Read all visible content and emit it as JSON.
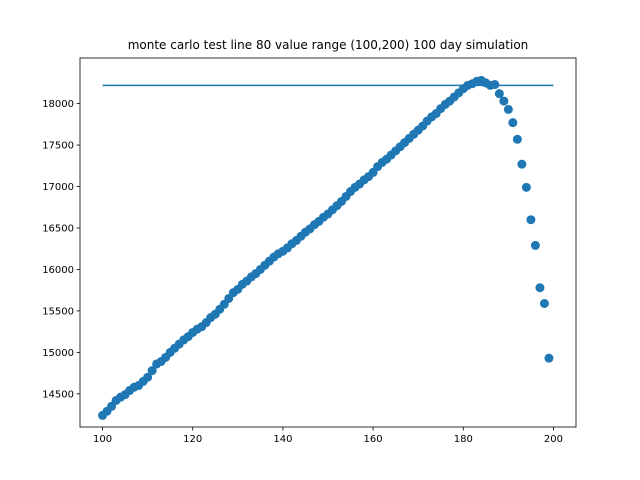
{
  "chart_data": {
    "type": "scatter",
    "title": "monte carlo test line 80 value range (100,200) 100 day simulation",
    "xlabel": "",
    "ylabel": "",
    "xlim": [
      95,
      205
    ],
    "ylim": [
      14100,
      18550
    ],
    "xticks": [
      100,
      120,
      140,
      160,
      180,
      200
    ],
    "yticks": [
      14500,
      15000,
      15500,
      16000,
      16500,
      17000,
      17500,
      18000
    ],
    "grid": false,
    "color": "#1f77b4",
    "hline": {
      "y": 18220,
      "xmin": 100,
      "xmax": 200
    },
    "series": [
      {
        "x": [
          100,
          101,
          102,
          103,
          104,
          105,
          106,
          107,
          108,
          109,
          110,
          111,
          112,
          113,
          114,
          115,
          116,
          117,
          118,
          119,
          120,
          121,
          122,
          123,
          124,
          125,
          126,
          127,
          128,
          129,
          130,
          131,
          132,
          133,
          134,
          135,
          136,
          137,
          138,
          139,
          140,
          141,
          142,
          143,
          144,
          145,
          146,
          147,
          148,
          149,
          150,
          151,
          152,
          153,
          154,
          155,
          156,
          157,
          158,
          159,
          160,
          161,
          162,
          163,
          164,
          165,
          166,
          167,
          168,
          169,
          170,
          171,
          172,
          173,
          174,
          175,
          176,
          177,
          178,
          179,
          180,
          181,
          182,
          183,
          184,
          185,
          186,
          187,
          188,
          189,
          190,
          191,
          192,
          193,
          194,
          195,
          196,
          197,
          198,
          199
        ],
        "y": [
          14240,
          14290,
          14350,
          14420,
          14460,
          14490,
          14540,
          14580,
          14600,
          14650,
          14700,
          14780,
          14860,
          14890,
          14940,
          15000,
          15050,
          15100,
          15150,
          15190,
          15240,
          15280,
          15310,
          15360,
          15420,
          15460,
          15520,
          15580,
          15650,
          15720,
          15760,
          15820,
          15860,
          15910,
          15950,
          16000,
          16050,
          16100,
          16150,
          16190,
          16220,
          16260,
          16310,
          16350,
          16400,
          16450,
          16490,
          16540,
          16580,
          16630,
          16670,
          16720,
          16770,
          16820,
          16880,
          16940,
          16990,
          17030,
          17080,
          17120,
          17170,
          17240,
          17290,
          17330,
          17380,
          17430,
          17480,
          17530,
          17580,
          17630,
          17680,
          17730,
          17790,
          17840,
          17880,
          17940,
          17990,
          18030,
          18080,
          18130,
          18180,
          18220,
          18240,
          18270,
          18280,
          18250,
          18220,
          18230,
          18120,
          18030,
          17930,
          17770,
          17570,
          17270,
          16990,
          16600,
          16290,
          15780,
          15590,
          14930
        ]
      }
    ]
  }
}
